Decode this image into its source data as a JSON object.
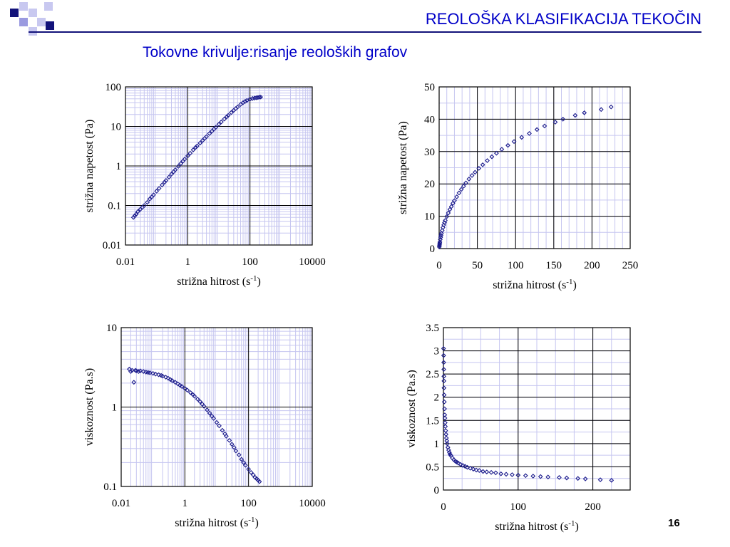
{
  "slide": {
    "title": "REOLOŠKA KLASIFIKACIJA TEKOČIN",
    "subtitle": "Tokovne krivulje:risanje reoloških grafov",
    "page_number": "16"
  },
  "colors": {
    "series": "#1a1a8c",
    "grid_minor": "#c6c6f0",
    "title": "#0000c8"
  },
  "chart_data": [
    {
      "id": "c1",
      "type": "scatter",
      "xscale": "log",
      "yscale": "log",
      "xlim": [
        0.01,
        10000
      ],
      "ylim": [
        0.01,
        100
      ],
      "xticks": [
        "0.01",
        "1",
        "100",
        "10000"
      ],
      "yticks": [
        "0.01",
        "0.1",
        "1",
        "10",
        "100"
      ],
      "xlabel": "strižna hitrost (s",
      "xlabel_sup": "-1",
      "xlabel_end": ")",
      "ylabel": "strižna napetost (Pa)",
      "x": [
        0.018,
        0.02,
        0.022,
        0.025,
        0.03,
        0.035,
        0.04,
        0.05,
        0.06,
        0.07,
        0.08,
        0.1,
        0.12,
        0.15,
        0.18,
        0.2,
        0.25,
        0.3,
        0.35,
        0.4,
        0.5,
        0.6,
        0.7,
        0.8,
        1.0,
        1.2,
        1.5,
        1.8,
        2,
        2.5,
        3,
        3.5,
        4,
        5,
        6,
        7,
        8,
        10,
        12,
        15,
        18,
        20,
        25,
        30,
        35,
        40,
        50,
        60,
        70,
        80,
        100,
        120,
        140,
        160,
        180,
        200,
        220
      ],
      "y": [
        0.05,
        0.055,
        0.06,
        0.07,
        0.08,
        0.09,
        0.1,
        0.12,
        0.145,
        0.165,
        0.185,
        0.23,
        0.27,
        0.33,
        0.39,
        0.43,
        0.52,
        0.62,
        0.71,
        0.8,
        0.98,
        1.15,
        1.32,
        1.49,
        1.8,
        2.1,
        2.55,
        2.95,
        3.2,
        3.8,
        4.4,
        5.0,
        5.5,
        6.6,
        7.6,
        8.6,
        9.5,
        11.3,
        13.0,
        15.4,
        17.6,
        19.0,
        22.4,
        25.5,
        28.4,
        31.0,
        36.0,
        40.0,
        43.0,
        45.5,
        49.0,
        51.0,
        52.0,
        53.0,
        54.0,
        55.0,
        55.5
      ]
    },
    {
      "id": "c2",
      "type": "scatter",
      "xscale": "linear",
      "yscale": "linear",
      "xlim": [
        0,
        250
      ],
      "ylim": [
        0,
        50
      ],
      "xticks": [
        "0",
        "50",
        "100",
        "150",
        "200",
        "250"
      ],
      "yticks": [
        "0",
        "10",
        "20",
        "30",
        "40",
        "50"
      ],
      "xlabel": "strižna hitrost (s",
      "xlabel_sup": "-1",
      "xlabel_end": ")",
      "ylabel": "strižna napetost (Pa)",
      "x": [
        0.2,
        0.4,
        0.6,
        0.8,
        1,
        1.5,
        2,
        2.5,
        3,
        4,
        5,
        6,
        7,
        8,
        10,
        12,
        14,
        16,
        18,
        20,
        23,
        26,
        29,
        32,
        35,
        39,
        43,
        47,
        52,
        57,
        63,
        69,
        75,
        82,
        90,
        98,
        108,
        118,
        128,
        138,
        152,
        162,
        178,
        190,
        212,
        225
      ],
      "y": [
        0.5,
        0.9,
        1.3,
        1.7,
        2.0,
        2.8,
        3.5,
        4.1,
        4.7,
        5.6,
        6.5,
        7.3,
        8.0,
        8.7,
        9.9,
        11.0,
        12.1,
        13.0,
        14.0,
        14.8,
        16.0,
        17.2,
        18.3,
        19.3,
        20.3,
        21.5,
        22.6,
        23.6,
        24.8,
        25.9,
        27.2,
        28.4,
        29.5,
        30.7,
        31.9,
        33.1,
        34.4,
        35.6,
        36.8,
        37.9,
        39.1,
        40.0,
        41.2,
        42.0,
        43.0,
        43.8
      ]
    },
    {
      "id": "c3",
      "type": "scatter",
      "xscale": "log",
      "yscale": "log",
      "xlim": [
        0.01,
        10000
      ],
      "ylim": [
        0.1,
        10
      ],
      "xticks": [
        "0.01",
        "1",
        "100",
        "10000"
      ],
      "yticks": [
        "0.1",
        "1",
        "10"
      ],
      "xlabel": "strižna hitrost (s",
      "xlabel_sup": "-1",
      "xlabel_end": ")",
      "ylabel": "viskoznost (Pa.s)",
      "x": [
        0.018,
        0.02,
        0.022,
        0.025,
        0.028,
        0.03,
        0.035,
        0.04,
        0.05,
        0.06,
        0.07,
        0.08,
        0.1,
        0.12,
        0.15,
        0.18,
        0.2,
        0.25,
        0.3,
        0.35,
        0.4,
        0.5,
        0.6,
        0.7,
        0.8,
        1.0,
        1.2,
        1.5,
        1.8,
        2,
        2.5,
        3,
        3.5,
        4,
        5,
        6,
        7,
        8,
        10,
        12,
        15,
        18,
        20,
        25,
        30,
        35,
        40,
        50,
        60,
        70,
        80,
        100,
        120,
        140,
        160,
        180,
        200,
        220
      ],
      "y": [
        3.0,
        2.8,
        2.9,
        2.05,
        2.9,
        2.85,
        2.8,
        2.85,
        2.8,
        2.75,
        2.72,
        2.7,
        2.65,
        2.6,
        2.55,
        2.5,
        2.45,
        2.38,
        2.3,
        2.22,
        2.15,
        2.05,
        1.96,
        1.88,
        1.82,
        1.72,
        1.63,
        1.52,
        1.43,
        1.37,
        1.26,
        1.17,
        1.09,
        1.02,
        0.92,
        0.84,
        0.77,
        0.72,
        0.64,
        0.58,
        0.51,
        0.46,
        0.43,
        0.38,
        0.34,
        0.31,
        0.28,
        0.25,
        0.22,
        0.2,
        0.185,
        0.165,
        0.15,
        0.14,
        0.13,
        0.125,
        0.12,
        0.115
      ]
    },
    {
      "id": "c4",
      "type": "scatter",
      "xscale": "linear",
      "yscale": "linear",
      "xlim": [
        0,
        250
      ],
      "ylim": [
        0,
        3.5
      ],
      "xticks": [
        "0",
        "100",
        "200"
      ],
      "yticks": [
        "0",
        "0.5",
        "1",
        "1.5",
        "2",
        "2.5",
        "3",
        "3.5"
      ],
      "xlabel": "strižna hitrost (s",
      "xlabel_sup": "-1",
      "xlabel_end": ")",
      "ylabel": "viskoznost (Pa.s)",
      "x": [
        0.2,
        0.3,
        0.4,
        0.5,
        0.6,
        0.7,
        0.8,
        1.0,
        1.2,
        1.5,
        1.8,
        2.0,
        2.3,
        2.6,
        3,
        3.5,
        4,
        4.5,
        5,
        6,
        7,
        8,
        9,
        10,
        12,
        14,
        16,
        18,
        20,
        23,
        26,
        29,
        32,
        36,
        40,
        44,
        48,
        53,
        58,
        64,
        70,
        77,
        84,
        92,
        100,
        110,
        120,
        130,
        140,
        155,
        165,
        180,
        190,
        210,
        225
      ],
      "y": [
        3.05,
        2.9,
        2.75,
        2.6,
        2.45,
        2.35,
        2.2,
        2.05,
        1.9,
        1.75,
        1.62,
        1.55,
        1.45,
        1.37,
        1.28,
        1.2,
        1.12,
        1.06,
        1.0,
        0.92,
        0.86,
        0.81,
        0.77,
        0.74,
        0.69,
        0.65,
        0.62,
        0.6,
        0.58,
        0.55,
        0.53,
        0.51,
        0.49,
        0.47,
        0.45,
        0.43,
        0.42,
        0.4,
        0.39,
        0.38,
        0.37,
        0.35,
        0.34,
        0.33,
        0.32,
        0.31,
        0.3,
        0.29,
        0.28,
        0.27,
        0.26,
        0.25,
        0.24,
        0.22,
        0.21
      ]
    }
  ]
}
